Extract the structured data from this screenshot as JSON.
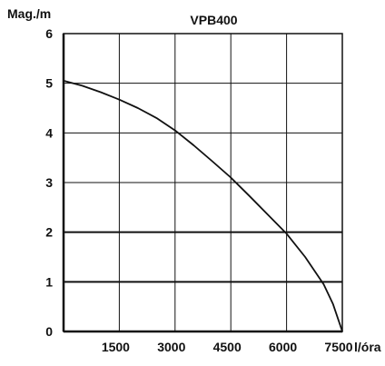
{
  "chart_data": {
    "type": "line",
    "title": "VPB400",
    "ylabel": "Mag./m",
    "xlabel": "l/óra",
    "xlim": [
      0,
      7500
    ],
    "ylim": [
      0,
      6
    ],
    "x_ticks": [
      "1500",
      "3000",
      "4500",
      "6000",
      "7500"
    ],
    "y_ticks": [
      "0",
      "1",
      "2",
      "3",
      "4",
      "5",
      "6"
    ],
    "grid": true,
    "legend": "none",
    "series": [
      {
        "x": [
          0,
          500,
          1000,
          1500,
          2000,
          2500,
          3000,
          3500,
          4000,
          4500,
          5000,
          5500,
          6000,
          6500,
          7000,
          7250,
          7500
        ],
        "y": [
          5.05,
          4.95,
          4.82,
          4.67,
          4.5,
          4.3,
          4.05,
          3.75,
          3.43,
          3.1,
          2.73,
          2.35,
          1.97,
          1.5,
          0.95,
          0.55,
          0.0
        ]
      }
    ],
    "colors": {
      "line": "#111111",
      "grid": "#111111",
      "background": "#ffffff"
    }
  }
}
